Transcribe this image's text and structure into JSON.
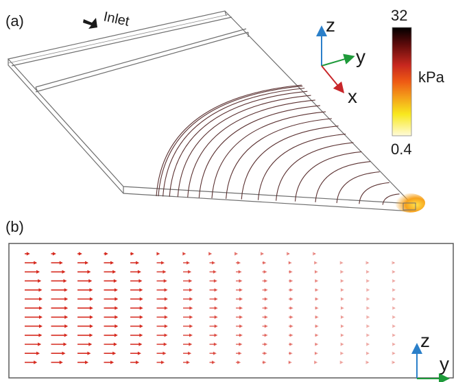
{
  "panels": {
    "a": {
      "label": "(a)"
    },
    "b": {
      "label": "(b)"
    }
  },
  "inlet": {
    "label": "Inlet"
  },
  "colorbar": {
    "max": "32",
    "min": "0.4",
    "unit": "kPa",
    "colors": [
      "#000000",
      "#5a0a0a",
      "#c8281e",
      "#ee5a14",
      "#f4a21a",
      "#f8e81e",
      "#fffbd8"
    ]
  },
  "axes_a": {
    "z": "z",
    "y": "y",
    "x": "x",
    "colors": {
      "z": "#2a7fc9",
      "y": "#1e9a3a",
      "x": "#c8262a"
    }
  },
  "axes_b": {
    "z": "z",
    "y": "y"
  },
  "velocity_field": {
    "arrow_color": "#d62a1f",
    "columns": 15,
    "rows": 13,
    "relative_length_by_column": [
      1.0,
      0.95,
      0.88,
      0.8,
      0.72,
      0.63,
      0.55,
      0.47,
      0.39,
      0.32,
      0.26,
      0.2,
      0.15,
      0.11,
      0.08
    ],
    "relative_length_by_row": [
      0.3,
      0.7,
      0.85,
      0.93,
      0.98,
      1.0,
      1.0,
      1.0,
      1.0,
      0.98,
      0.93,
      0.85,
      0.7
    ]
  }
}
